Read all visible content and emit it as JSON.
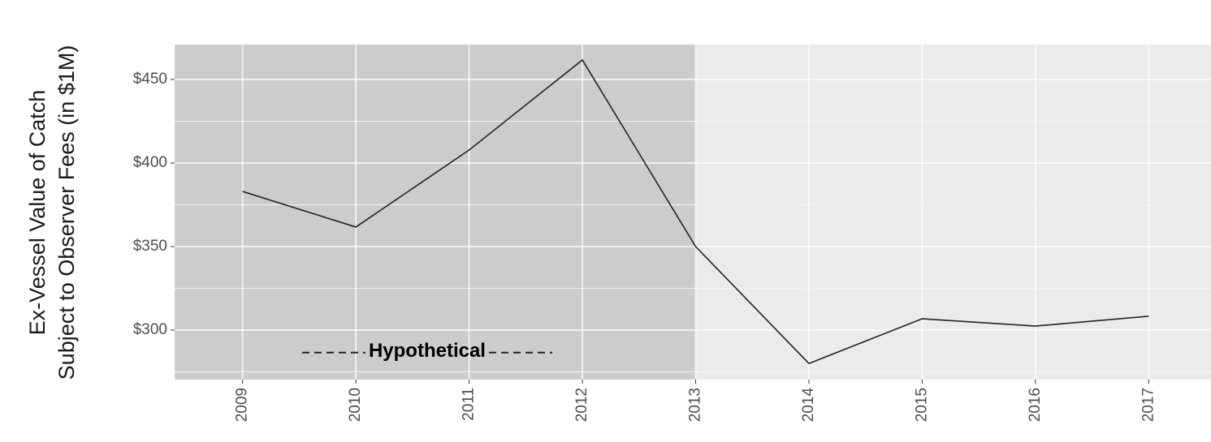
{
  "chart_data": {
    "type": "line",
    "y_title": [
      "Ex-Vessel Value of Catch",
      "Subject to Observer Fees (in $1M)"
    ],
    "x": [
      2009,
      2010,
      2011,
      2012,
      2013,
      2014,
      2015,
      2016,
      2017
    ],
    "series": [
      {
        "color": "#222222",
        "values": [
          383,
          361.7,
          407.8,
          461.7,
          350,
          280,
          306.8,
          302.4,
          308.3
        ]
      }
    ],
    "xlim": [
      2008.4,
      2017.55
    ],
    "xticks": [
      2009,
      2010,
      2011,
      2012,
      2013,
      2014,
      2015,
      2016,
      2017
    ],
    "ylim": [
      270.4,
      470.9
    ],
    "yticks": [
      {
        "value": 300,
        "label": "$300"
      },
      {
        "value": 350,
        "label": "$350"
      },
      {
        "value": 400,
        "label": "$400"
      },
      {
        "value": 450,
        "label": "$450"
      }
    ],
    "y_minor_grid": [
      275,
      325,
      375,
      425
    ],
    "grid": true,
    "shaded_until": 2013,
    "annotation": {
      "text": "Hypothetical",
      "x": 2010.63,
      "y": 287
    }
  }
}
